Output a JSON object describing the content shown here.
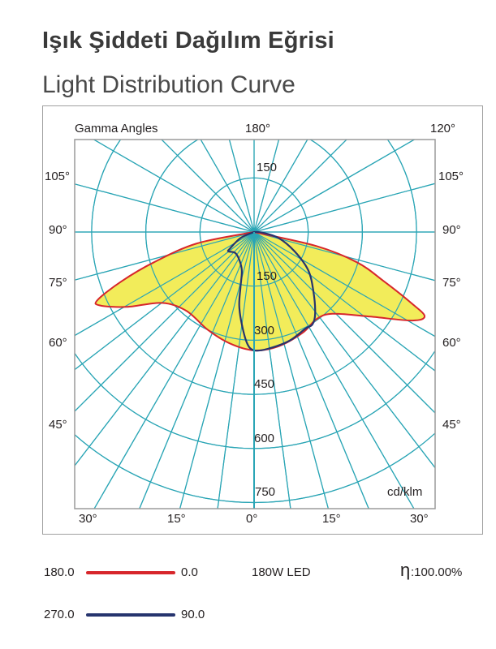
{
  "title_tr": "Işık Şiddeti Dağılım Eğrisi",
  "title_en": "Light Distribution Curve",
  "chart_data": {
    "type": "polar",
    "title": "Light Distribution Curve",
    "corner_label": "Gamma Angles",
    "unit_label": "cd/klm",
    "top_labels": [
      "180°",
      "120°"
    ],
    "side_angle_labels": [
      "105°",
      "90°",
      "75°",
      "60°",
      "45°"
    ],
    "bottom_angle_labels": [
      "30°",
      "15°",
      "0°",
      "15°",
      "30°"
    ],
    "radial_ticks": [
      150,
      300,
      450,
      600,
      750
    ],
    "radial_tick_labels": [
      "150",
      "150",
      "300",
      "450",
      "600",
      "750"
    ],
    "rmax": 750,
    "series": [
      {
        "name": "C180.0 - C0.0",
        "color": "#d7262b",
        "fill": "#f2ec5a",
        "points": [
          [
            -90,
            0
          ],
          [
            -78.7,
            161
          ],
          [
            -73.2,
            290
          ],
          [
            -69.6,
            392
          ],
          [
            -66.5,
            473
          ],
          [
            -64.5,
            473
          ],
          [
            -59.5,
            409
          ],
          [
            -52.4,
            322
          ],
          [
            -40.6,
            288
          ],
          [
            -25.2,
            300
          ],
          [
            -12.3,
            316
          ],
          [
            0,
            328
          ],
          [
            12,
            324
          ],
          [
            25.8,
            310
          ],
          [
            35.6,
            297
          ],
          [
            43.8,
            314
          ],
          [
            54,
            399
          ],
          [
            60.6,
            500
          ],
          [
            63.7,
            527
          ],
          [
            65.7,
            477
          ],
          [
            69.2,
            385
          ],
          [
            73.6,
            297
          ],
          [
            77.3,
            177
          ],
          [
            90,
            0
          ]
        ]
      },
      {
        "name": "C270.0 - C90.0",
        "color": "#26346e",
        "points": [
          [
            -90,
            0
          ],
          [
            -66,
            41
          ],
          [
            -55.4,
            82
          ],
          [
            -52.9,
            89
          ],
          [
            -42.2,
            78
          ],
          [
            -28.3,
            87
          ],
          [
            -17.6,
            112
          ],
          [
            -13.9,
            156
          ],
          [
            -11.4,
            208
          ],
          [
            -7.5,
            259
          ],
          [
            -3.5,
            310
          ],
          [
            0,
            328
          ],
          [
            6.6,
            326
          ],
          [
            17.9,
            317
          ],
          [
            28,
            303
          ],
          [
            32.2,
            303
          ],
          [
            36.7,
            283
          ],
          [
            44.7,
            234
          ],
          [
            54.7,
            184
          ],
          [
            64.4,
            125
          ],
          [
            76.3,
            70
          ],
          [
            86,
            22
          ],
          [
            90,
            0
          ]
        ]
      }
    ]
  },
  "legend": [
    {
      "left": "180.0",
      "right": "0.0",
      "color": "#d7262b"
    },
    {
      "left": "270.0",
      "right": "90.0",
      "color": "#26346e"
    }
  ],
  "lamp": "180W LED",
  "efficiency_symbol": "η",
  "efficiency": ":100.00%"
}
